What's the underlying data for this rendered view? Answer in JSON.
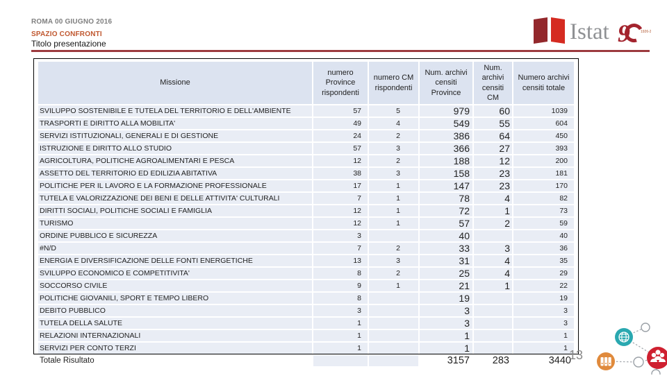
{
  "slide": {
    "date_line": "ROMA 00 GIUGNO 2016",
    "eyebrow": "SPAZIO CONFRONTI",
    "title": "Titolo presentazione",
    "page_number": "13"
  },
  "logo": {
    "name": "Istat",
    "anniversary": "90",
    "anniversary_years": "1926-2016"
  },
  "table": {
    "columns": [
      "Missione",
      "numero Province rispondenti",
      "numero CM rispondenti",
      "Num. archivi censiti Province",
      "Num. archivi censiti CM",
      "Numero archivi censiti totale"
    ],
    "rows": [
      [
        "SVILUPPO SOSTENIBILE E TUTELA DEL TERRITORIO E DELL'AMBIENTE",
        "57",
        "5",
        "979",
        "60",
        "1039"
      ],
      [
        "TRASPORTI E DIRITTO ALLA MOBILITA'",
        "49",
        "4",
        "549",
        "55",
        "604"
      ],
      [
        "SERVIZI ISTITUZIONALI, GENERALI E DI GESTIONE",
        "24",
        "2",
        "386",
        "64",
        "450"
      ],
      [
        "ISTRUZIONE E DIRITTO ALLO STUDIO",
        "57",
        "3",
        "366",
        "27",
        "393"
      ],
      [
        "AGRICOLTURA, POLITICHE AGROALIMENTARI E PESCA",
        "12",
        "2",
        "188",
        "12",
        "200"
      ],
      [
        "ASSETTO DEL TERRITORIO ED EDILIZIA ABITATIVA",
        "38",
        "3",
        "158",
        "23",
        "181"
      ],
      [
        "POLITICHE PER IL LAVORO E LA FORMAZIONE PROFESSIONALE",
        "17",
        "1",
        "147",
        "23",
        "170"
      ],
      [
        "TUTELA E VALORIZZAZIONE DEI BENI E DELLE ATTIVITA' CULTURALI",
        "7",
        "1",
        "78",
        "4",
        "82"
      ],
      [
        "DIRITTI SOCIALI, POLITICHE SOCIALI E FAMIGLIA",
        "12",
        "1",
        "72",
        "1",
        "73"
      ],
      [
        "TURISMO",
        "12",
        "1",
        "57",
        "2",
        "59"
      ],
      [
        "ORDINE PUBBLICO E SICUREZZA",
        "3",
        "",
        "40",
        "",
        "40"
      ],
      [
        "#N/D",
        "7",
        "2",
        "33",
        "3",
        "36"
      ],
      [
        "ENERGIA E DIVERSIFICAZIONE DELLE FONTI ENERGETICHE",
        "13",
        "3",
        "31",
        "4",
        "35"
      ],
      [
        "SVILUPPO ECONOMICO E COMPETITIVITA'",
        "8",
        "2",
        "25",
        "4",
        "29"
      ],
      [
        "SOCCORSO CIVILE",
        "9",
        "1",
        "21",
        "1",
        "22"
      ],
      [
        "POLITICHE GIOVANILI, SPORT E TEMPO LIBERO",
        "8",
        "",
        "19",
        "",
        "19"
      ],
      [
        "DEBITO PUBBLICO",
        "3",
        "",
        "3",
        "",
        "3"
      ],
      [
        "TUTELA DELLA SALUTE",
        "1",
        "",
        "3",
        "",
        "3"
      ],
      [
        "RELAZIONI INTERNAZIONALI",
        "1",
        "",
        "1",
        "",
        "1"
      ],
      [
        "SERVIZI PER CONTO TERZI",
        "1",
        "",
        "1",
        "",
        "1"
      ]
    ],
    "total_row": [
      "Totale Risultato",
      "",
      "",
      "3157",
      "283",
      "3440"
    ]
  },
  "decoration": {
    "icons": [
      "globe-icon",
      "binders-icon",
      "people-icon"
    ]
  },
  "colors": {
    "rule": "#9c3a3e",
    "eyebrow_text": "#c0572e",
    "table_header_bg": "#dce3f0",
    "table_row_bg": "#e9edf5",
    "logo_dark_red": "#93282c",
    "logo_bright_red": "#d52b21",
    "anniversary_red": "#a3242e",
    "teal_circle": "#2aa8b0",
    "orange_circle": "#e08a3c",
    "red_circle": "#cf2030",
    "page_number_gray": "#8a8a8a"
  }
}
